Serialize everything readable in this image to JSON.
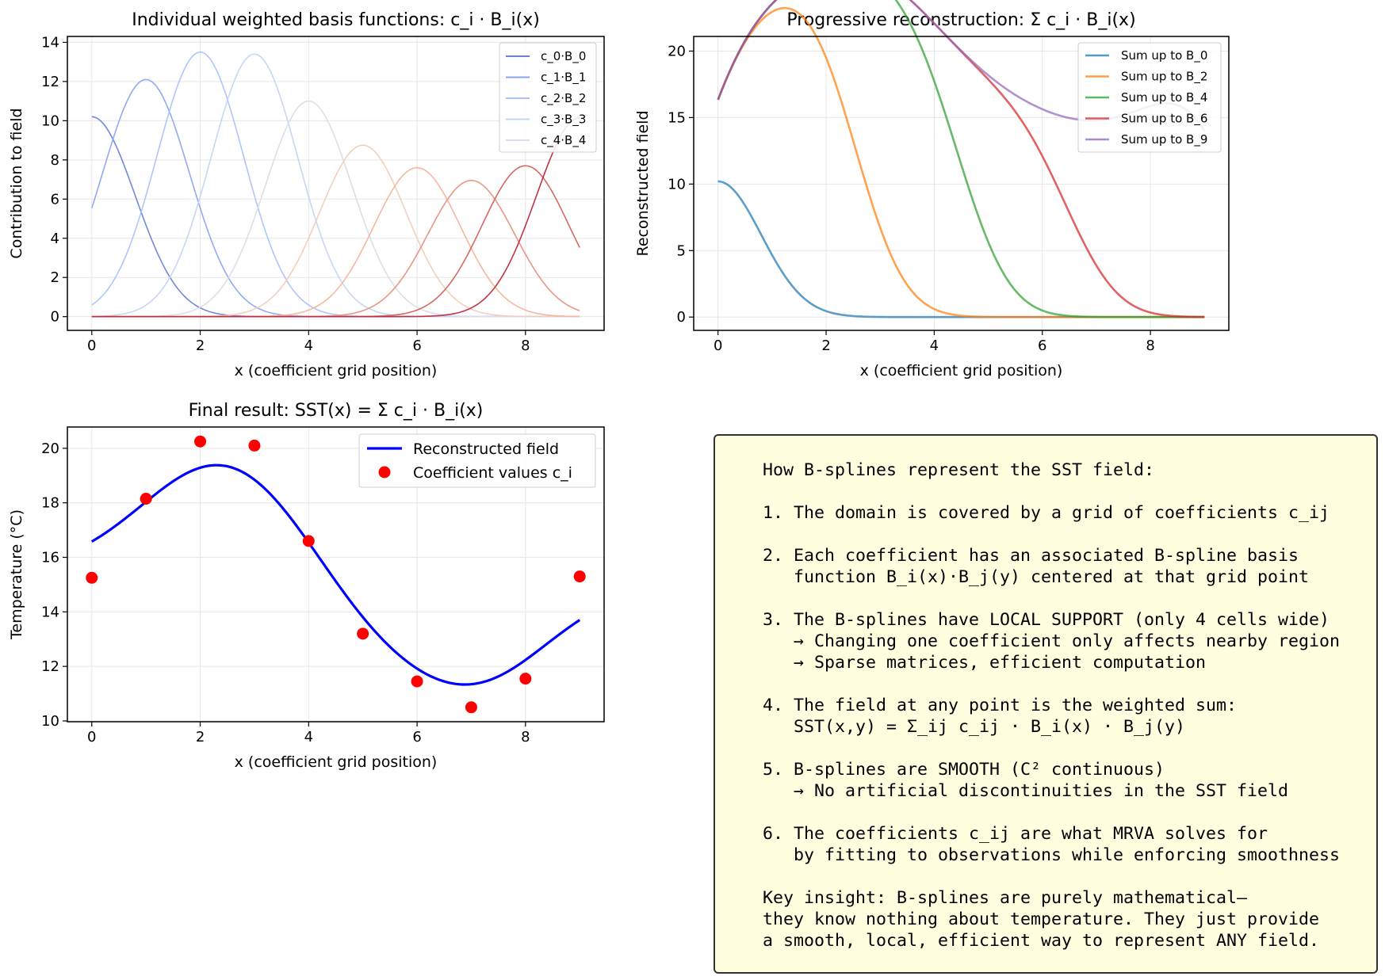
{
  "chart_data": [
    {
      "type": "line",
      "title": "Individual weighted basis functions: c_i · B_i(x)",
      "xlabel": "x (coefficient grid position)",
      "ylabel": "Contribution to field",
      "xlim": [
        -0.45,
        9.45
      ],
      "ylim": [
        -0.7,
        14.3
      ],
      "xticks": [
        0,
        2,
        4,
        6,
        8
      ],
      "yticks": [
        0,
        2,
        4,
        6,
        8,
        10,
        12,
        14
      ],
      "grid": true,
      "legend_position": "top-right",
      "legend": [
        "c_0·B_0",
        "c_1·B_1",
        "c_2·B_2",
        "c_3·B_3",
        "c_4·B_4"
      ],
      "series_colors": [
        "#6a82d8",
        "#8aa6f2",
        "#a9c3fb",
        "#c2d5f5",
        "#d8dee8",
        "#f1ccb9",
        "#f4b49a",
        "#e8907c",
        "#d46158",
        "#bf2a3a"
      ],
      "basis_peaks": [
        10.2,
        12.1,
        13.5,
        13.4,
        11.0,
        8.75,
        7.6,
        6.95,
        7.7,
        10.15
      ],
      "basis_centers": [
        0,
        1,
        2,
        3,
        4,
        5,
        6,
        7,
        8,
        9
      ],
      "basis_width": 0.8
    },
    {
      "type": "line",
      "title": "Progressive reconstruction: Σ c_i · B_i(x)",
      "xlabel": "x (coefficient grid position)",
      "ylabel": "Reconstructed field",
      "xlim": [
        -0.45,
        9.45
      ],
      "ylim": [
        -1.0,
        21.1
      ],
      "xticks": [
        0,
        2,
        4,
        6,
        8
      ],
      "yticks": [
        0,
        5,
        10,
        15,
        20
      ],
      "grid": true,
      "legend_position": "top-right",
      "series": [
        {
          "name": "Sum up to B_0",
          "color": "#1f77b4",
          "up_to": 0
        },
        {
          "name": "Sum up to B_2",
          "color": "#ff7f0e",
          "up_to": 2
        },
        {
          "name": "Sum up to B_4",
          "color": "#2ca02c",
          "up_to": 4
        },
        {
          "name": "Sum up to B_6",
          "color": "#d62728",
          "up_to": 6
        },
        {
          "name": "Sum up to B_9",
          "color": "#9467bd",
          "up_to": 9
        }
      ]
    },
    {
      "type": "line",
      "title": "Final result: SST(x) = Σ c_i · B_i(x)",
      "xlabel": "x (coefficient grid position)",
      "ylabel": "Temperature (°C)",
      "xlim": [
        -0.45,
        9.45
      ],
      "ylim": [
        9.97,
        20.78
      ],
      "xticks": [
        0,
        2,
        4,
        6,
        8
      ],
      "yticks": [
        10,
        12,
        14,
        16,
        18,
        20
      ],
      "grid": true,
      "legend_position": "top-right",
      "series": [
        {
          "name": "Reconstructed field",
          "color": "#0000ff",
          "kind": "line"
        },
        {
          "name": "Coefficient values c_i",
          "color": "#ff0000",
          "kind": "scatter"
        }
      ],
      "x": [
        0,
        1,
        2,
        3,
        4,
        5,
        6,
        7,
        8,
        9
      ],
      "coefficients": [
        15.25,
        18.15,
        20.25,
        20.1,
        16.6,
        13.2,
        11.45,
        10.5,
        11.55,
        15.3
      ]
    }
  ],
  "note": {
    "text": "How B-splines represent the SST field:\n\n1. The domain is covered by a grid of coefficients c_ij\n\n2. Each coefficient has an associated B-spline basis\n   function B_i(x)·B_j(y) centered at that grid point\n\n3. The B-splines have LOCAL SUPPORT (only 4 cells wide)\n   → Changing one coefficient only affects nearby region\n   → Sparse matrices, efficient computation\n\n4. The field at any point is the weighted sum:\n   SST(x,y) = Σ_ij c_ij · B_i(x) · B_j(y)\n\n5. B-splines are SMOOTH (C² continuous)\n   → No artificial discontinuities in the SST field\n\n6. The coefficients c_ij are what MRVA solves for\n   by fitting to observations while enforcing smoothness\n\nKey insight: B-splines are purely mathematical—\nthey know nothing about temperature. They just provide\na smooth, local, efficient way to represent ANY field."
  }
}
